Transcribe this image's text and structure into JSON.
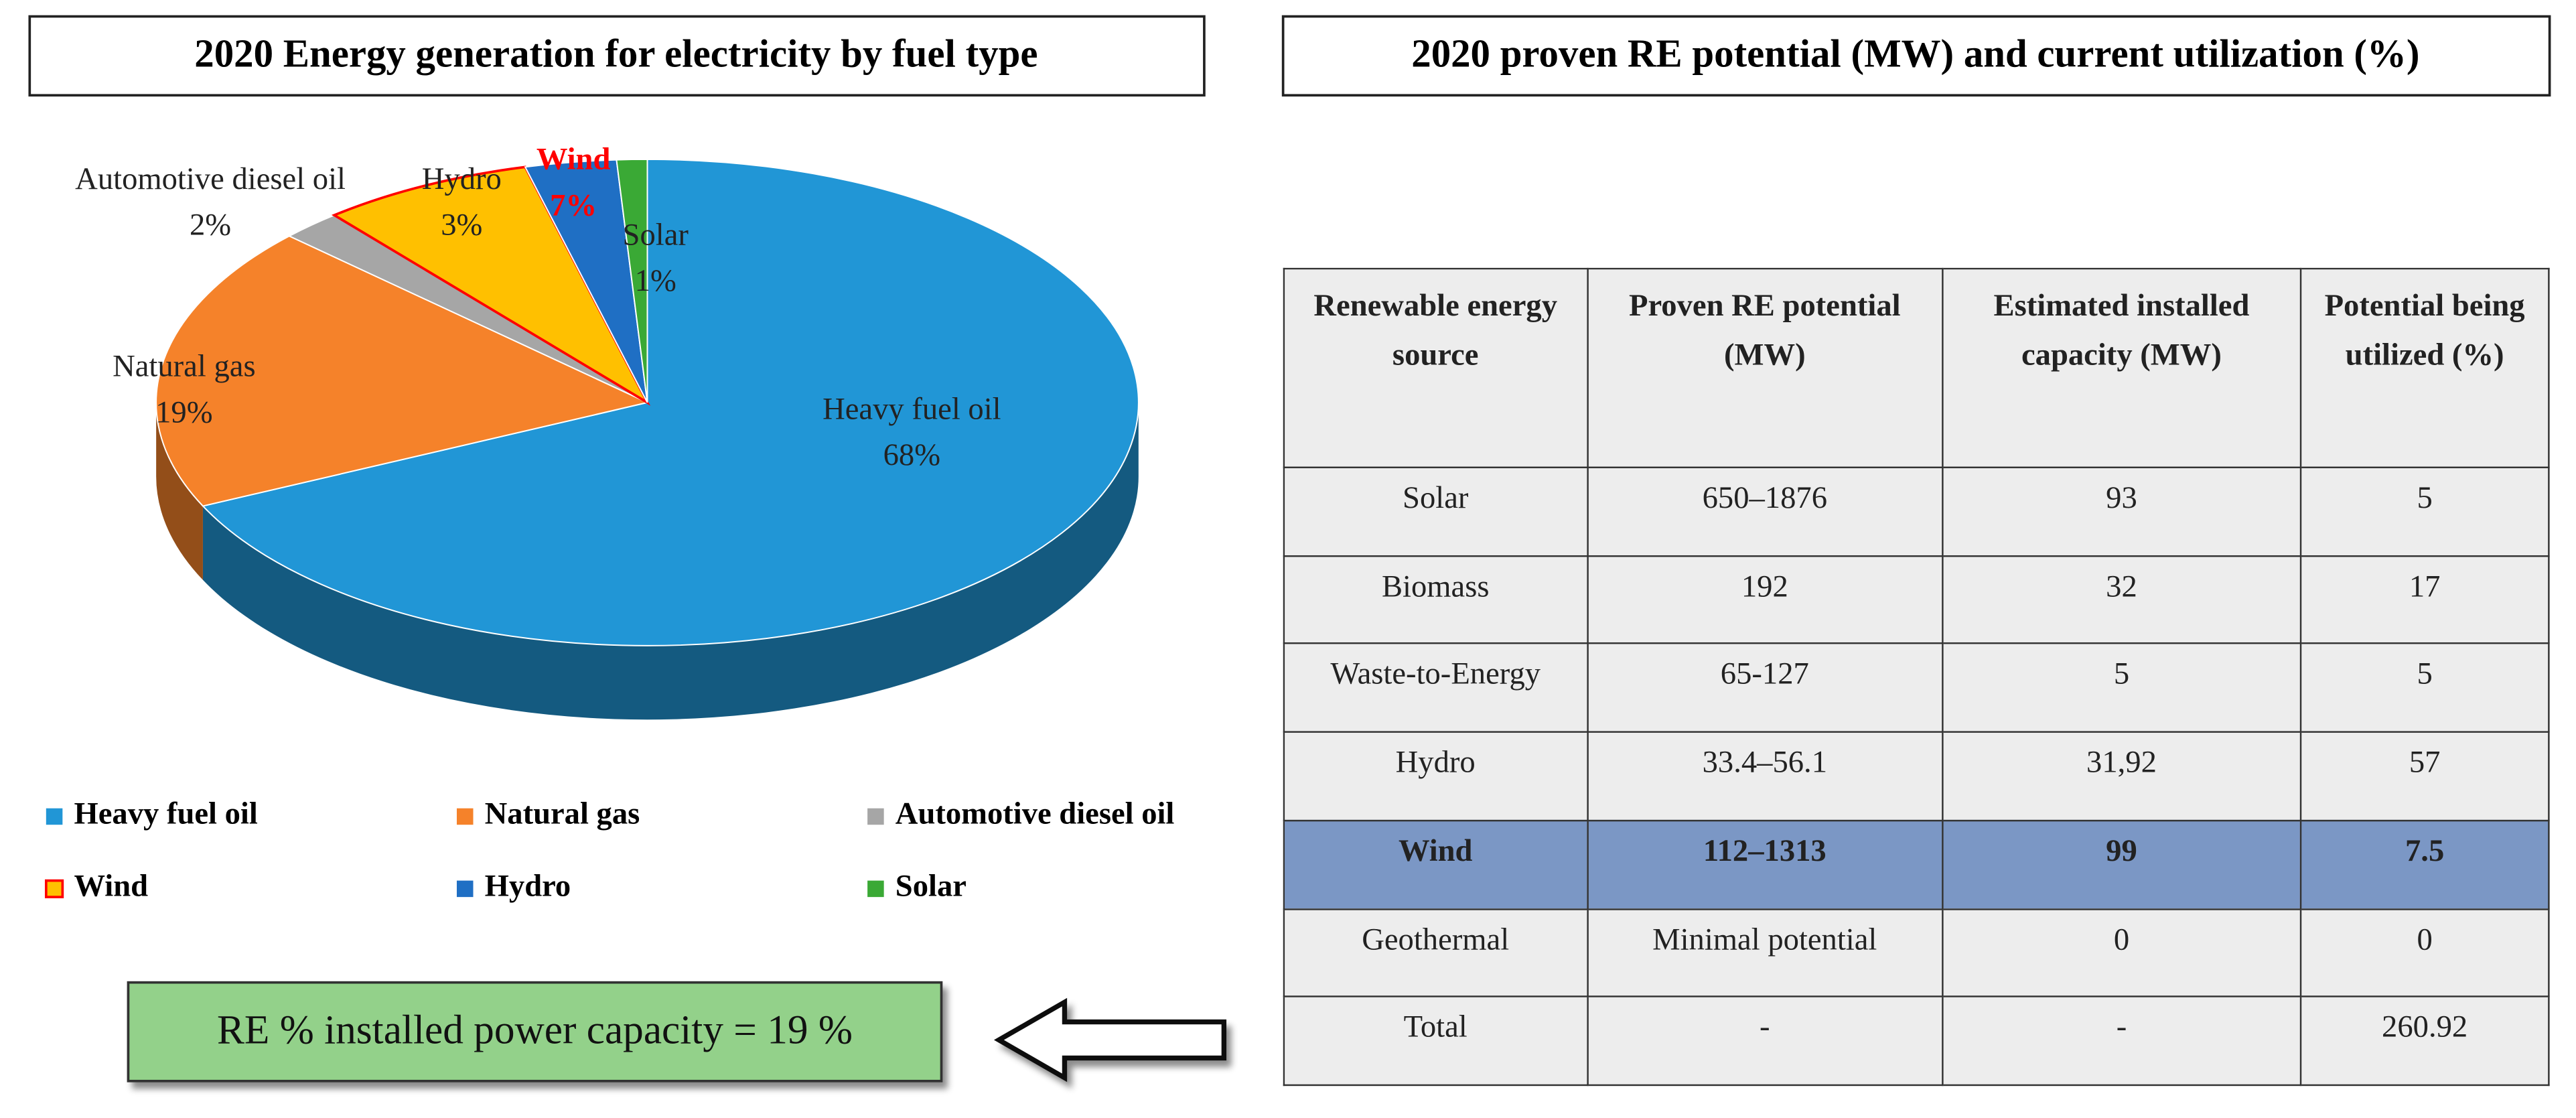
{
  "left_panel_title": "2020 Energy generation for electricity by fuel type",
  "right_panel_title": "2020 proven RE potential (MW) and current utilization (%)",
  "chart_data": {
    "type": "pie",
    "categories": [
      "Heavy fuel oil",
      "Natural gas",
      "Automotive diesel oil",
      "Wind",
      "Hydro",
      "Solar"
    ],
    "values": [
      68,
      19,
      2,
      7,
      3,
      1
    ],
    "value_labels": [
      "68%",
      "19%",
      "2%",
      "7%",
      "3%",
      "1%"
    ],
    "colors": [
      "#2196d6",
      "#f5822a",
      "#a6a6a6",
      "#ffc000",
      "#1f6fc4",
      "#3aa935"
    ],
    "legend": true
  },
  "note": "RE % installed power capacity = 19 %",
  "table": {
    "header": [
      "Renewable energy source",
      "Proven RE potential (MW)",
      "Estimated installed capacity (MW)",
      "Potential being utilized (%)"
    ],
    "rows": [
      [
        "Solar",
        "650–1876",
        "93",
        "5"
      ],
      [
        "Biomass",
        "192",
        "32",
        "17"
      ],
      [
        "Waste-to-Energy",
        "65-127",
        "5",
        "5"
      ],
      [
        "Hydro",
        "33.4–56.1",
        "31,92",
        "57"
      ],
      [
        "Wind",
        "112–1313",
        "99",
        "7.5"
      ],
      [
        "Geothermal",
        "Minimal potential",
        "0",
        "0"
      ],
      [
        "Total",
        "-",
        "-",
        "260.92"
      ]
    ]
  }
}
